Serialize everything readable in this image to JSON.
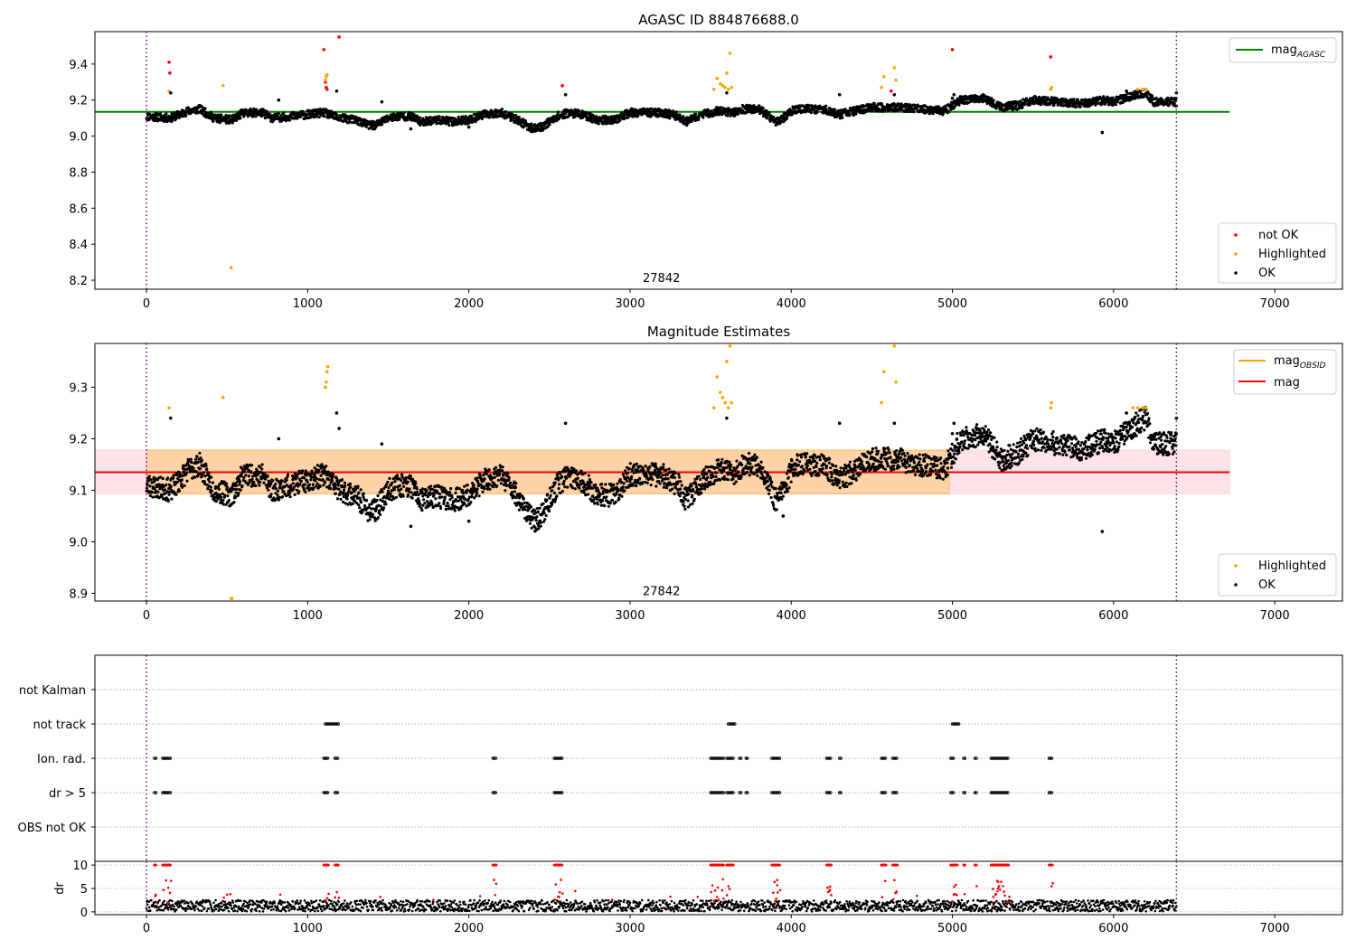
{
  "chart_data": [
    {
      "type": "scatter",
      "title": "AGASC ID 884876688.0",
      "xlim": [
        -320,
        7420
      ],
      "ylim": [
        8.15,
        9.58
      ],
      "xticks": [
        0,
        1000,
        2000,
        3000,
        4000,
        5000,
        6000,
        7000
      ],
      "yticks": [
        8.2,
        8.4,
        8.6,
        8.8,
        9.0,
        9.2,
        9.4
      ],
      "vlines": [
        0,
        6390
      ],
      "obsid_label": {
        "text": "27842",
        "x": 3195,
        "y": 8.2
      },
      "reference_lines": [
        {
          "name": "mag$_{AGASC}$",
          "label_main": "mag",
          "label_sub": "AGASC",
          "y": 9.135,
          "x": [
            -320,
            6720
          ],
          "color": "#008000"
        }
      ],
      "legend_top": {
        "placement": "upper right",
        "entries": [
          {
            "label_main": "mag",
            "label_sub": "AGASC",
            "color": "#008000",
            "kind": "line"
          }
        ]
      },
      "legend_bottom": {
        "placement": "lower right",
        "entries": [
          {
            "label": "not OK",
            "color": "#ff0000",
            "kind": "dot"
          },
          {
            "label": "Highlighted",
            "color": "#ffa500",
            "kind": "dot"
          },
          {
            "label": "OK",
            "color": "#000000",
            "kind": "dot"
          }
        ]
      },
      "series": [
        {
          "name": "not OK",
          "color": "#ff0000",
          "points": [
            [
              140,
              9.41
            ],
            [
              145,
              9.35
            ],
            [
              1100,
              9.48
            ],
            [
              1110,
              9.3
            ],
            [
              1115,
              9.27
            ],
            [
              1120,
              9.26
            ],
            [
              1195,
              9.55
            ],
            [
              2580,
              9.28
            ],
            [
              5000,
              9.48
            ],
            [
              5610,
              9.44
            ],
            [
              4620,
              9.25
            ]
          ]
        },
        {
          "name": "Highlighted",
          "color": "#ffa500",
          "points": [
            [
              140,
              9.25
            ],
            [
              475,
              9.28
            ],
            [
              525,
              8.27
            ],
            [
              1110,
              9.31
            ],
            [
              1115,
              9.33
            ],
            [
              1120,
              9.34
            ],
            [
              3520,
              9.26
            ],
            [
              3540,
              9.32
            ],
            [
              3560,
              9.29
            ],
            [
              3575,
              9.28
            ],
            [
              3590,
              9.27
            ],
            [
              3600,
              9.35
            ],
            [
              3610,
              9.26
            ],
            [
              3620,
              9.46
            ],
            [
              3630,
              9.27
            ],
            [
              4560,
              9.27
            ],
            [
              4575,
              9.33
            ],
            [
              4640,
              9.38
            ],
            [
              4650,
              9.31
            ],
            [
              5610,
              9.26
            ],
            [
              5615,
              9.27
            ],
            [
              6150,
              9.26
            ],
            [
              6180,
              9.26
            ],
            [
              6200,
              9.26
            ]
          ]
        },
        {
          "name": "OK",
          "color": "#000000",
          "points": [
            [
              150,
              9.24
            ],
            [
              820,
              9.2
            ],
            [
              1180,
              9.25
            ],
            [
              1460,
              9.19
            ],
            [
              2600,
              9.23
            ],
            [
              3600,
              9.24
            ],
            [
              4300,
              9.23
            ],
            [
              4640,
              9.23
            ],
            [
              5930,
              9.02
            ],
            [
              1640,
              9.04
            ],
            [
              2000,
              9.05
            ],
            [
              5000,
              9.21
            ],
            [
              5010,
              9.23
            ],
            [
              6080,
              9.25
            ],
            [
              6390,
              9.24
            ]
          ]
        }
      ]
    },
    {
      "type": "scatter",
      "title": "Magnitude Estimates",
      "xlim": [
        -320,
        7420
      ],
      "ylim": [
        8.885,
        9.385
      ],
      "xticks": [
        0,
        1000,
        2000,
        3000,
        4000,
        5000,
        6000,
        7000
      ],
      "yticks": [
        8.9,
        9.0,
        9.1,
        9.2,
        9.3
      ],
      "vlines": [
        0,
        6390
      ],
      "obsid_label": {
        "text": "27842",
        "x": 3195,
        "y": 8.9
      },
      "reference_lines": [
        {
          "name": "mag$_{OBSID}$",
          "label_main": "mag",
          "label_sub": "OBSID",
          "y": 9.135,
          "x": [
            0,
            4980
          ],
          "color": "#ffa500"
        },
        {
          "name": "mag",
          "y": 9.135,
          "x": [
            -320,
            6720
          ],
          "color": "#ff0000"
        }
      ],
      "bands": [
        {
          "ymin": 9.093,
          "ymax": 9.178,
          "x": [
            -320,
            6720
          ],
          "color": "#ffc0cb",
          "opacity": 0.45
        },
        {
          "ymin": 9.093,
          "ymax": 9.178,
          "x": [
            0,
            4980
          ],
          "color": "#ffa500",
          "opacity": 0.28
        }
      ],
      "legend_top": {
        "placement": "upper right",
        "entries": [
          {
            "label_main": "mag",
            "label_sub": "OBSID",
            "color": "#ffa500",
            "kind": "line"
          },
          {
            "label": "mag",
            "color": "#ff0000",
            "kind": "line"
          }
        ]
      },
      "legend_bottom": {
        "placement": "lower right",
        "entries": [
          {
            "label": "Highlighted",
            "color": "#ffa500",
            "kind": "dot"
          },
          {
            "label": "OK",
            "color": "#000000",
            "kind": "dot"
          }
        ]
      },
      "series": [
        {
          "name": "Highlighted",
          "color": "#ffa500",
          "points": [
            [
              140,
              9.26
            ],
            [
              475,
              9.28
            ],
            [
              525,
              8.89
            ],
            [
              530,
              8.89
            ],
            [
              1110,
              9.3
            ],
            [
              1115,
              9.31
            ],
            [
              1120,
              9.33
            ],
            [
              1125,
              9.34
            ],
            [
              3520,
              9.26
            ],
            [
              3540,
              9.32
            ],
            [
              3560,
              9.29
            ],
            [
              3575,
              9.28
            ],
            [
              3590,
              9.27
            ],
            [
              3600,
              9.35
            ],
            [
              3610,
              9.26
            ],
            [
              3620,
              9.38
            ],
            [
              3630,
              9.27
            ],
            [
              4560,
              9.27
            ],
            [
              4575,
              9.33
            ],
            [
              4640,
              9.38
            ],
            [
              4650,
              9.31
            ],
            [
              5610,
              9.26
            ],
            [
              5615,
              9.27
            ],
            [
              6120,
              9.26
            ],
            [
              6150,
              9.26
            ],
            [
              6180,
              9.26
            ],
            [
              6200,
              9.26
            ]
          ]
        },
        {
          "name": "OK",
          "color": "#000000",
          "points": [
            [
              150,
              9.24
            ],
            [
              820,
              9.2
            ],
            [
              1180,
              9.25
            ],
            [
              1195,
              9.22
            ],
            [
              1460,
              9.19
            ],
            [
              1640,
              9.03
            ],
            [
              2000,
              9.04
            ],
            [
              2600,
              9.23
            ],
            [
              3600,
              9.24
            ],
            [
              3950,
              9.05
            ],
            [
              4300,
              9.23
            ],
            [
              4640,
              9.23
            ],
            [
              5930,
              9.02
            ],
            [
              5000,
              9.21
            ],
            [
              5010,
              9.23
            ],
            [
              6080,
              9.25
            ],
            [
              6390,
              9.24
            ]
          ]
        }
      ]
    },
    {
      "type": "scatter",
      "title": "",
      "xlim": [
        -320,
        7420
      ],
      "categories": [
        "not Kalman",
        "not track",
        "Ion. rad.",
        "dr > 5",
        "OBS not OK"
      ],
      "xticks": [
        0,
        1000,
        2000,
        3000,
        4000,
        5000,
        6000,
        7000
      ],
      "vlines": [
        0,
        6390
      ],
      "flags": {
        "not Kalman": [],
        "not track": [
          [
            1110,
            1190
          ],
          [
            3610,
            3650
          ],
          [
            5000,
            5040
          ]
        ],
        "Ion. rad.": [
          [
            50,
            60
          ],
          [
            100,
            150
          ],
          [
            1100,
            1130
          ],
          [
            1170,
            1190
          ],
          [
            2150,
            2170
          ],
          [
            2530,
            2580
          ],
          [
            3500,
            3580
          ],
          [
            3600,
            3640
          ],
          [
            3680,
            3690
          ],
          [
            3720,
            3730
          ],
          [
            3880,
            3930
          ],
          [
            4220,
            4250
          ],
          [
            4300,
            4310
          ],
          [
            4560,
            4590
          ],
          [
            4630,
            4660
          ],
          [
            4990,
            5010
          ],
          [
            5070,
            5080
          ],
          [
            5140,
            5150
          ],
          [
            5240,
            5350
          ],
          [
            5600,
            5620
          ]
        ],
        "dr > 5": [
          [
            50,
            60
          ],
          [
            100,
            150
          ],
          [
            1100,
            1130
          ],
          [
            1170,
            1190
          ],
          [
            2150,
            2170
          ],
          [
            2530,
            2580
          ],
          [
            3500,
            3580
          ],
          [
            3600,
            3640
          ],
          [
            3680,
            3690
          ],
          [
            3720,
            3730
          ],
          [
            3880,
            3930
          ],
          [
            4220,
            4250
          ],
          [
            4300,
            4310
          ],
          [
            4560,
            4590
          ],
          [
            4630,
            4660
          ],
          [
            4990,
            5010
          ],
          [
            5070,
            5080
          ],
          [
            5140,
            5150
          ],
          [
            5240,
            5350
          ],
          [
            5600,
            5620
          ]
        ],
        "OBS not OK": []
      }
    },
    {
      "type": "scatter",
      "title": "",
      "ylabel": "dr",
      "xlim": [
        -320,
        7420
      ],
      "ylim": [
        -0.6,
        10.8
      ],
      "yticks": [
        0,
        5,
        10
      ],
      "xticks": [
        0,
        1000,
        2000,
        3000,
        4000,
        5000,
        6000,
        7000
      ],
      "xtick_labels": [
        "0",
        "1000",
        "2000",
        "3000",
        "4000",
        "5000",
        "6000",
        "7000"
      ],
      "vlines": [
        0,
        6390
      ],
      "series": [
        {
          "name": "dr > 5",
          "color": "#ff0000",
          "ranges": [
            [
              50,
              60
            ],
            [
              100,
              150
            ],
            [
              1100,
              1130
            ],
            [
              1170,
              1190
            ],
            [
              2150,
              2170
            ],
            [
              2530,
              2580
            ],
            [
              3500,
              3580
            ],
            [
              3600,
              3640
            ],
            [
              3880,
              3930
            ],
            [
              4220,
              4250
            ],
            [
              4560,
              4590
            ],
            [
              4630,
              4660
            ],
            [
              4990,
              5030
            ],
            [
              5070,
              5080
            ],
            [
              5140,
              5150
            ],
            [
              5240,
              5350
            ],
            [
              5600,
              5620
            ]
          ],
          "value": 10
        }
      ]
    }
  ]
}
